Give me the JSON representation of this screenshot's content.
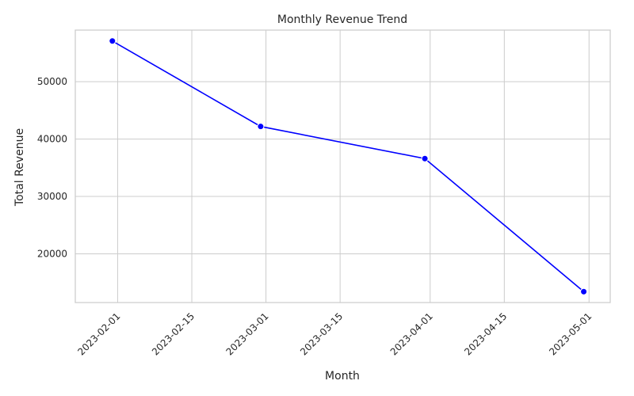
{
  "chart_data": {
    "type": "line",
    "title": "Monthly Revenue Trend",
    "xlabel": "Month",
    "ylabel": "Total Revenue",
    "x_ticks": [
      "2023-02-01",
      "2023-02-15",
      "2023-03-01",
      "2023-03-15",
      "2023-04-01",
      "2023-04-15",
      "2023-05-01"
    ],
    "y_ticks": [
      20000,
      30000,
      40000,
      50000
    ],
    "xlim": [
      "2023-01-24",
      "2023-05-05"
    ],
    "ylim": [
      11500,
      59000
    ],
    "grid": true,
    "legend": "none",
    "series": [
      {
        "color": "#0000ff",
        "x": [
          "2023-01-31",
          "2023-02-28",
          "2023-03-31",
          "2023-04-30"
        ],
        "values": [
          57100,
          42200,
          36600,
          13400
        ]
      }
    ]
  }
}
